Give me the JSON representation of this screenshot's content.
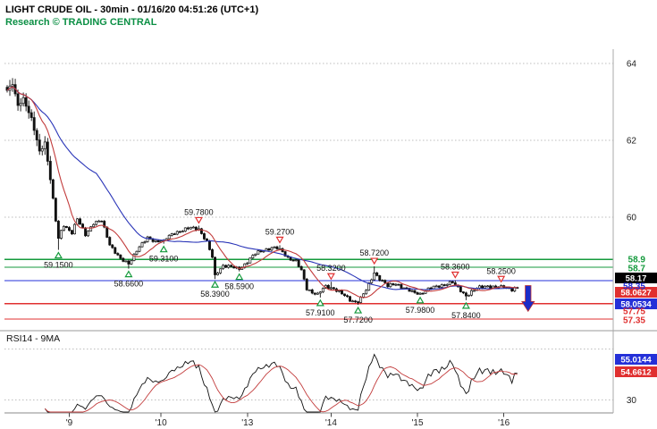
{
  "header": {
    "title": "LIGHT CRUDE OIL - 30min - 01/16/20 04:51:26 (UTC+1)",
    "subtitle": "Research © TRADING CENTRAL"
  },
  "colors": {
    "green": "#149a3c",
    "red": "#e03030",
    "blue": "#2430d8",
    "black": "#000000",
    "grid": "#bdbdbd",
    "axis_text": "#222222",
    "candle": "#111111",
    "ma_fast_red": "#c23b3b",
    "ma_slow_blue": "#2a35b8",
    "rsi_line": "#111111",
    "rsi_ma": "#c23b3b",
    "provider_green": "#0b8f44",
    "arrow_fill": "#1b2cc8",
    "arrow_stroke": "#c03030",
    "badge_text": "#ffffff"
  },
  "chart_data": {
    "type": "candlestick",
    "title": "LIGHT CRUDE OIL 30min",
    "timestamp": "01/16/20 04:51:26 (UTC+1)",
    "price_axis": {
      "ticks": [
        64,
        62,
        60
      ],
      "ylim": [
        57.1,
        64.35
      ],
      "position": "right"
    },
    "x_axis": {
      "day_ticks": [
        {
          "label": "'9",
          "bar": 23
        },
        {
          "label": "'10",
          "bar": 57
        },
        {
          "label": "'13",
          "bar": 89
        },
        {
          "label": "'14",
          "bar": 120
        },
        {
          "label": "'15",
          "bar": 152
        },
        {
          "label": "'16",
          "bar": 184
        }
      ]
    },
    "levels": [
      {
        "label": "58.9",
        "price": 58.9,
        "color": "green",
        "kind": "resistance"
      },
      {
        "label": "58.7",
        "price": 58.7,
        "color": "green",
        "kind": "resistance"
      },
      {
        "label": "58.35",
        "price": 58.35,
        "color": "blue",
        "kind": "pivot"
      },
      {
        "label": "57.75",
        "price": 57.75,
        "color": "red",
        "kind": "support"
      },
      {
        "label": "57.35",
        "price": 57.35,
        "color": "red",
        "kind": "support"
      }
    ],
    "last_price": 58.17,
    "price_badges": [
      {
        "value": "58.17",
        "bg": "black"
      },
      {
        "value": "58.0627",
        "bg": "red"
      },
      {
        "value": "58.0534",
        "bg": "blue"
      }
    ],
    "bars_total": 190,
    "close_path_anchors": [
      [
        0,
        63.3
      ],
      [
        2,
        63.45
      ],
      [
        4,
        62.9
      ],
      [
        6,
        63.1
      ],
      [
        9,
        62.55
      ],
      [
        12,
        61.7
      ],
      [
        14,
        61.95
      ],
      [
        16,
        61.0
      ],
      [
        18,
        59.9
      ],
      [
        19,
        59.45
      ],
      [
        21,
        59.8
      ],
      [
        24,
        59.6
      ],
      [
        26,
        59.95
      ],
      [
        29,
        59.55
      ],
      [
        32,
        59.85
      ],
      [
        35,
        59.9
      ],
      [
        38,
        59.3
      ],
      [
        42,
        58.9
      ],
      [
        45,
        58.78
      ],
      [
        48,
        59.15
      ],
      [
        52,
        59.45
      ],
      [
        55,
        59.38
      ],
      [
        58,
        59.4
      ],
      [
        62,
        59.6
      ],
      [
        68,
        59.72
      ],
      [
        71,
        59.7
      ],
      [
        74,
        59.35
      ],
      [
        76,
        58.95
      ],
      [
        77,
        58.5
      ],
      [
        80,
        58.75
      ],
      [
        83,
        58.7
      ],
      [
        86,
        58.64
      ],
      [
        89,
        58.85
      ],
      [
        92,
        59.05
      ],
      [
        95,
        59.15
      ],
      [
        98,
        59.2
      ],
      [
        101,
        59.18
      ],
      [
        104,
        58.95
      ],
      [
        107,
        58.85
      ],
      [
        109,
        58.6
      ],
      [
        111,
        58.15
      ],
      [
        113,
        58.05
      ],
      [
        115,
        57.98
      ],
      [
        118,
        58.2
      ],
      [
        121,
        58.15
      ],
      [
        124,
        58.0
      ],
      [
        127,
        57.85
      ],
      [
        130,
        57.78
      ],
      [
        133,
        58.1
      ],
      [
        136,
        58.55
      ],
      [
        138,
        58.4
      ],
      [
        141,
        58.2
      ],
      [
        144,
        58.28
      ],
      [
        147,
        58.15
      ],
      [
        150,
        58.05
      ],
      [
        153,
        58.02
      ],
      [
        156,
        58.12
      ],
      [
        159,
        58.2
      ],
      [
        162,
        58.25
      ],
      [
        165,
        58.3
      ],
      [
        168,
        58.1
      ],
      [
        170,
        57.95
      ],
      [
        172,
        58.05
      ],
      [
        175,
        58.18
      ],
      [
        178,
        58.22
      ],
      [
        181,
        58.15
      ],
      [
        183,
        58.22
      ],
      [
        185,
        58.18
      ],
      [
        187,
        58.12
      ],
      [
        189,
        58.17
      ]
    ],
    "wick_overrides": {
      "2": {
        "h": 63.62
      },
      "19": {
        "l": 59.15
      },
      "45": {
        "l": 58.66
      },
      "58": {
        "l": 59.31
      },
      "71": {
        "h": 59.78
      },
      "77": {
        "l": 58.39
      },
      "86": {
        "l": 58.59
      },
      "101": {
        "h": 59.27
      },
      "116": {
        "l": 57.91
      },
      "120": {
        "h": 58.32
      },
      "130": {
        "l": 57.72
      },
      "136": {
        "h": 58.72
      },
      "153": {
        "l": 57.98
      },
      "166": {
        "h": 58.36
      },
      "170": {
        "l": 57.84
      },
      "183": {
        "h": 58.25
      }
    },
    "swings": [
      {
        "bar": 19,
        "price": 59.15,
        "text": "59.1500",
        "kind": "low"
      },
      {
        "bar": 45,
        "price": 58.66,
        "text": "58.6600",
        "kind": "low"
      },
      {
        "bar": 58,
        "price": 59.31,
        "text": "59.3100",
        "kind": "low"
      },
      {
        "bar": 71,
        "price": 59.78,
        "text": "59.7800",
        "kind": "high"
      },
      {
        "bar": 77,
        "price": 58.39,
        "text": "58.3900",
        "kind": "low"
      },
      {
        "bar": 86,
        "price": 58.59,
        "text": "58.5900",
        "kind": "low"
      },
      {
        "bar": 101,
        "price": 59.27,
        "text": "59.2700",
        "kind": "high"
      },
      {
        "bar": 116,
        "price": 57.91,
        "text": "57.9100",
        "kind": "low"
      },
      {
        "bar": 120,
        "price": 58.32,
        "text": "58.3200",
        "kind": "high"
      },
      {
        "bar": 130,
        "price": 57.72,
        "text": "57.7200",
        "kind": "low"
      },
      {
        "bar": 136,
        "price": 58.72,
        "text": "58.7200",
        "kind": "high"
      },
      {
        "bar": 153,
        "price": 57.98,
        "text": "57.9800",
        "kind": "low"
      },
      {
        "bar": 166,
        "price": 58.36,
        "text": "58.3600",
        "kind": "high"
      },
      {
        "bar": 170,
        "price": 57.84,
        "text": "57.8400",
        "kind": "low"
      },
      {
        "bar": 183,
        "price": 58.25,
        "text": "58.2500",
        "kind": "high"
      }
    ],
    "moving_averages": {
      "fast": {
        "period": 10,
        "color": "ma_fast_red"
      },
      "slow": {
        "period": 34,
        "color": "ma_slow_blue"
      }
    },
    "rsi": {
      "label": "RSI14 - 9MA",
      "period": 14,
      "ma_period": 9,
      "axis_tick": 30,
      "badges": [
        {
          "value": "55.0144",
          "bg": "blue"
        },
        {
          "value": "54.6612",
          "bg": "red"
        }
      ]
    },
    "signal_arrow": {
      "direction": "down",
      "from_price": 58.22,
      "to_price": 57.55
    }
  }
}
